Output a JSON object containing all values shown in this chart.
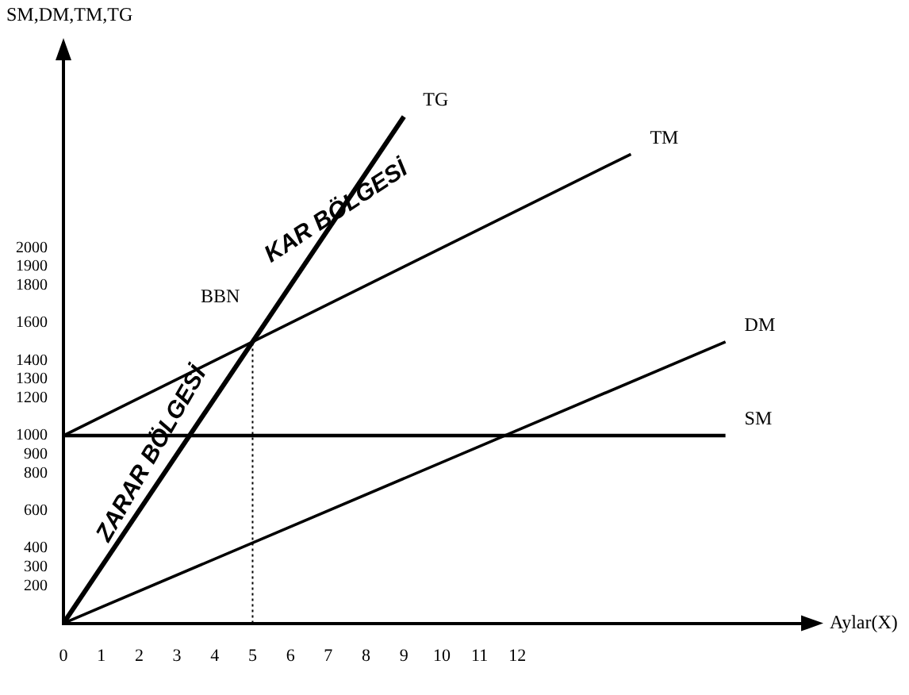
{
  "chart_data": {
    "type": "line",
    "xlabel": "Aylar(X)",
    "ylabel": "SM,DM,TM,TG",
    "annotations": [
      {
        "text": "BBN",
        "x": 5,
        "y": 1500
      },
      "KAR BÖLGESİ",
      "ZARAR BÖLGESİ"
    ],
    "xlim": [
      0,
      19.5
    ],
    "ylim": [
      0,
      3000
    ],
    "xticks": [
      0,
      1,
      2,
      3,
      4,
      5,
      6,
      7,
      8,
      9,
      10,
      11,
      12
    ],
    "yticks": [
      200,
      300,
      400,
      600,
      800,
      900,
      1000,
      1200,
      1300,
      1400,
      1600,
      1800,
      1900,
      2000
    ],
    "series": [
      {
        "name": "TG",
        "color": "#000000",
        "x": [
          0,
          9
        ],
        "values": [
          0,
          2700
        ]
      },
      {
        "name": "TM",
        "color": "#000000",
        "x": [
          0,
          15
        ],
        "values": [
          1000,
          2500
        ]
      },
      {
        "name": "DM",
        "color": "#000000",
        "x": [
          0,
          17.5
        ],
        "values": [
          0,
          1500
        ]
      },
      {
        "name": "SM",
        "color": "#000000",
        "x": [
          0,
          17.5
        ],
        "values": [
          1000,
          1000
        ]
      },
      {
        "color": "#000000",
        "x": [
          5,
          5
        ],
        "values": [
          0,
          1500
        ],
        "line_style": "dotted"
      }
    ],
    "grid": false,
    "legend": false,
    "marker": "none",
    "line_style": "solid"
  }
}
